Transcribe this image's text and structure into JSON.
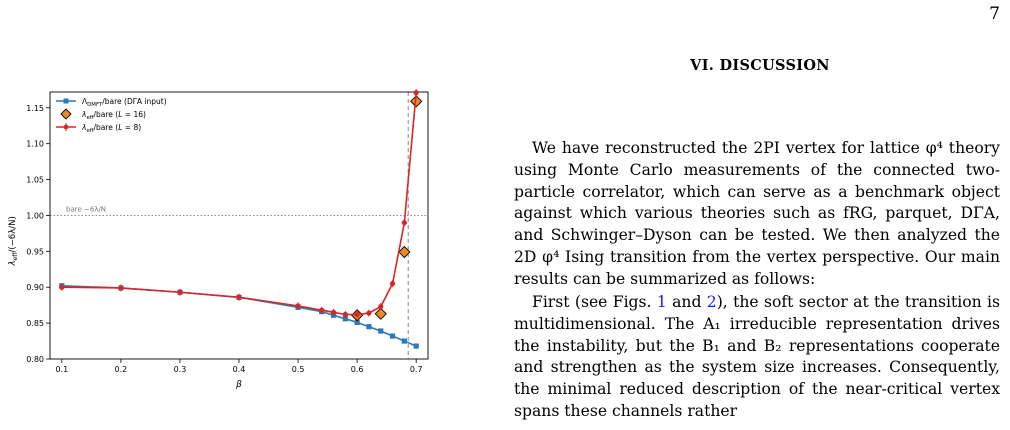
{
  "page": {
    "number": "7"
  },
  "section": {
    "heading": "VI.   DISCUSSION"
  },
  "paragraphs": {
    "p1": "We have reconstructed the 2PI vertex for lattice φ⁴ theory using Monte Carlo measurements of the connected two-particle correlator, which can serve as a benchmark object against which various theories such as fRG, parquet, DΓA, and Schwinger–Dyson can be tested. We then analyzed the 2D φ⁴ Ising transition from the vertex perspective. Our main results can be summarized as follows:",
    "p2_a": "First (see Figs. ",
    "p2_ref1": "1",
    "p2_b": " and ",
    "p2_ref2": "2",
    "p2_c": "), the soft sector at the transition is multidimensional. The A₁ irreducible representation drives the instability, but the B₁ and B₂ representations cooperate and strengthen as the system size increases. Consequently, the minimal reduced description of the near-critical vertex spans these channels rather"
  },
  "chart_data": {
    "type": "line",
    "xlabel": "β",
    "ylabel": "λ_eff / (−6λ/N)",
    "xlim": [
      0.08,
      0.72
    ],
    "ylim": [
      0.8,
      1.172
    ],
    "xticks": [
      0.1,
      0.2,
      0.3,
      0.4,
      0.5,
      0.6,
      0.7
    ],
    "xtick_labels": [
      "0.1",
      "0.2",
      "0.3",
      "0.4",
      "0.5",
      "0.6",
      "0.7"
    ],
    "yticks": [
      0.8,
      0.85,
      0.9,
      0.95,
      1.0,
      1.05,
      1.1,
      1.15
    ],
    "ytick_labels": [
      "0.80",
      "0.85",
      "0.90",
      "0.95",
      "1.00",
      "1.05",
      "1.10",
      "1.15"
    ],
    "legend_position": "top-left",
    "grid": false,
    "reference_line": {
      "y": 1.0,
      "label": "bare  −6λ/N"
    },
    "vertical_line": {
      "x": 0.6865
    },
    "series": [
      {
        "name": "Λ_DMFT/bare  (DΓA input)",
        "color": "#2a7ab9",
        "marker": "square",
        "x": [
          0.1,
          0.2,
          0.3,
          0.4,
          0.5,
          0.54,
          0.56,
          0.58,
          0.6,
          0.62,
          0.64,
          0.66,
          0.68,
          0.7
        ],
        "y": [
          0.902,
          0.899,
          0.893,
          0.886,
          0.872,
          0.866,
          0.861,
          0.856,
          0.851,
          0.845,
          0.839,
          0.832,
          0.825,
          0.818
        ]
      },
      {
        "name": "λ_eff/bare  (L = 16)",
        "color": "#f08a1c",
        "marker": "diamond",
        "x": [
          0.6,
          0.64,
          0.68,
          0.7
        ],
        "y": [
          0.861,
          0.863,
          0.949,
          1.159
        ]
      },
      {
        "name": "λ_eff/bare  (L = 8)",
        "color": "#d62728",
        "marker": "circle",
        "x": [
          0.1,
          0.2,
          0.3,
          0.4,
          0.5,
          0.54,
          0.56,
          0.58,
          0.6,
          0.62,
          0.64,
          0.66,
          0.68,
          0.7
        ],
        "y": [
          0.9,
          0.899,
          0.893,
          0.886,
          0.874,
          0.868,
          0.865,
          0.862,
          0.862,
          0.864,
          0.873,
          0.905,
          0.99,
          1.171
        ]
      }
    ]
  }
}
